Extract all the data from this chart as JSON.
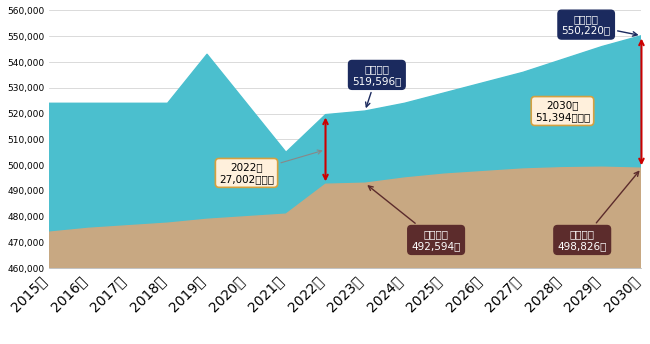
{
  "years": [
    2015,
    2016,
    2017,
    2018,
    2019,
    2020,
    2021,
    2022,
    2023,
    2024,
    2025,
    2026,
    2027,
    2028,
    2029,
    2030
  ],
  "demand": [
    524000,
    524000,
    524000,
    524000,
    543000,
    524000,
    505000,
    519596,
    521000,
    524000,
    528000,
    532000,
    536000,
    541000,
    546000,
    550220
  ],
  "supply": [
    474000,
    475500,
    476500,
    477500,
    479000,
    480000,
    481000,
    492594,
    493000,
    495000,
    496500,
    497500,
    498500,
    499000,
    499200,
    498826
  ],
  "demand_color": "#4BBFCE",
  "supply_color": "#C8A882",
  "ylim": [
    460000,
    560000
  ],
  "yticks": [
    460000,
    470000,
    480000,
    490000,
    500000,
    510000,
    520000,
    530000,
    540000,
    550000,
    560000
  ],
  "annotation_2022_box_color": "#FFF0DC",
  "annotation_2022_border_color": "#D4A040",
  "annotation_2022_text": "2022年\n27,002人不足",
  "annotation_2023_demand_box_color": "#1B2A5E",
  "annotation_2023_demand_text": "必要人数\n519,596人",
  "annotation_2023_supply_box_color": "#5C2C2C",
  "annotation_2023_supply_text": "就業者数\n492,594人",
  "annotation_2030_demand_box_color": "#1B2A5E",
  "annotation_2030_demand_text": "必要人数\n550,220人",
  "annotation_2030_supply_box_color": "#5C2C2C",
  "annotation_2030_supply_text": "就業者数\n498,826人",
  "annotation_2030_shortage_box_color": "#FFF0DC",
  "annotation_2030_shortage_border_color": "#D4A040",
  "annotation_2030_shortage_text": "2030年\n51,394人不足",
  "arrow_color": "#CC0000",
  "bg_color": "#FFFFFF",
  "grid_color": "#CCCCCC"
}
